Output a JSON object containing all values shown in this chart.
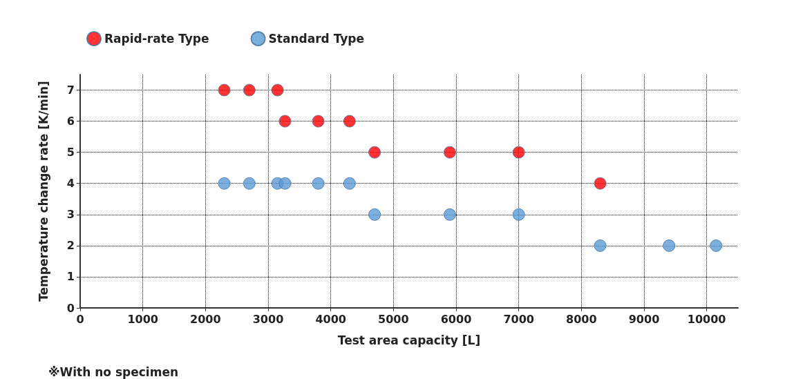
{
  "chart_data": {
    "type": "scatter",
    "xlabel": "Test area capacity [L]",
    "ylabel": "Temperature change rate [K/min]",
    "annotations": [
      "※With no specimen"
    ],
    "xlim": [
      0,
      10500
    ],
    "xticks": [
      0,
      1000,
      2000,
      3000,
      4000,
      5000,
      6000,
      7000,
      8000,
      9000,
      10000
    ],
    "ylim": [
      0,
      7.5
    ],
    "yticks": [
      0,
      1,
      2,
      3,
      4,
      5,
      6,
      7
    ],
    "grid": true,
    "legend": "top left",
    "marker": "circle",
    "series": [
      {
        "name": "Rapid-rate Type",
        "color": "#ff0000",
        "x": [
          2300,
          2700,
          3150,
          3270,
          3800,
          4300,
          4700,
          5900,
          7000,
          8300
        ],
        "values": [
          7,
          7,
          7,
          6,
          6,
          6,
          5,
          5,
          5,
          4
        ]
      },
      {
        "name": "Standard Type",
        "color": "#5b9bd5",
        "x": [
          2300,
          2700,
          3150,
          3270,
          3800,
          4300,
          4700,
          5900,
          7000,
          8300,
          9400,
          10150
        ],
        "values": [
          4,
          4,
          4,
          4,
          4,
          4,
          3,
          3,
          3,
          2,
          2,
          2
        ]
      }
    ]
  }
}
